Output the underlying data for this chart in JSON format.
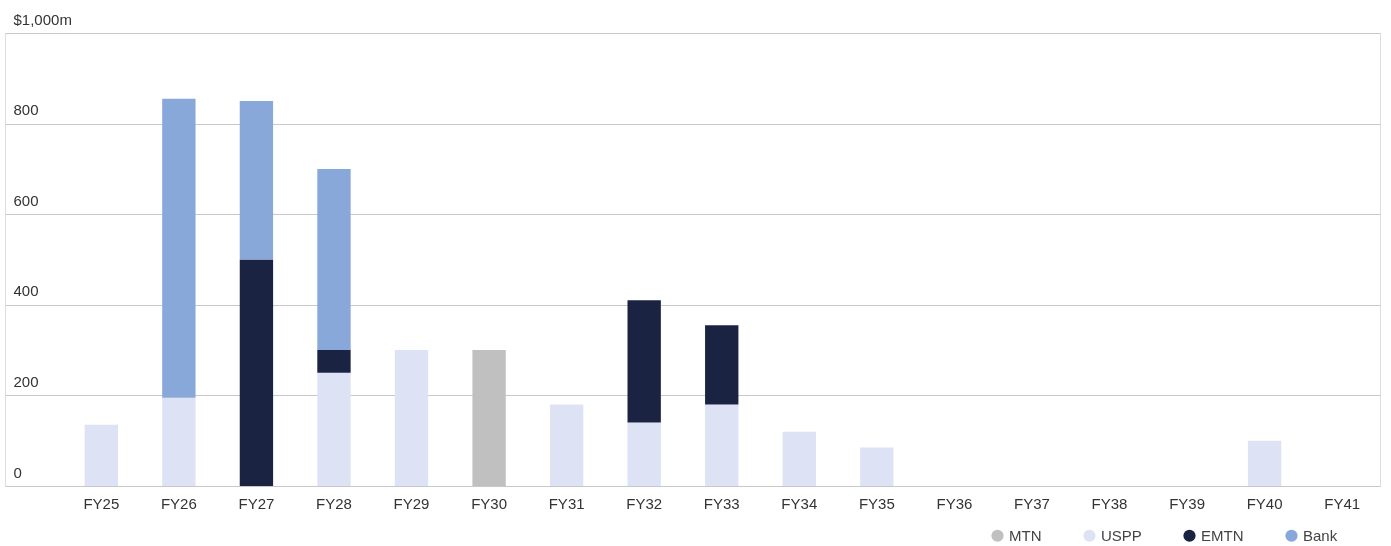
{
  "chart_data": {
    "type": "bar",
    "stacked": true,
    "categories": [
      "FY25",
      "FY26",
      "FY27",
      "FY28",
      "FY29",
      "FY30",
      "FY31",
      "FY32",
      "FY33",
      "FY34",
      "FY35",
      "FY36",
      "FY37",
      "FY38",
      "FY39",
      "FY40",
      "FY41"
    ],
    "series": [
      {
        "name": "MTN",
        "color": "#c0c0c0",
        "values": [
          0,
          0,
          0,
          0,
          0,
          300,
          0,
          0,
          0,
          0,
          0,
          0,
          0,
          0,
          0,
          0,
          0
        ]
      },
      {
        "name": "USPP",
        "color": "#dde3f4",
        "values": [
          135,
          195,
          0,
          250,
          300,
          0,
          180,
          140,
          180,
          120,
          85,
          0,
          0,
          0,
          0,
          100,
          0
        ]
      },
      {
        "name": "EMTN",
        "color": "#1a2442",
        "values": [
          0,
          0,
          500,
          50,
          0,
          0,
          0,
          270,
          175,
          0,
          0,
          0,
          0,
          0,
          0,
          0,
          0
        ]
      },
      {
        "name": "Bank",
        "color": "#87a8d9",
        "values": [
          0,
          660,
          350,
          400,
          0,
          0,
          0,
          0,
          0,
          0,
          0,
          0,
          0,
          0,
          0,
          0,
          0
        ]
      }
    ],
    "ylim": [
      0,
      1000
    ],
    "yticks": [
      0,
      200,
      400,
      600,
      800,
      {
        "value": 1000,
        "label": "$1,000m"
      }
    ],
    "grid": "y",
    "legend": "bottom right"
  }
}
